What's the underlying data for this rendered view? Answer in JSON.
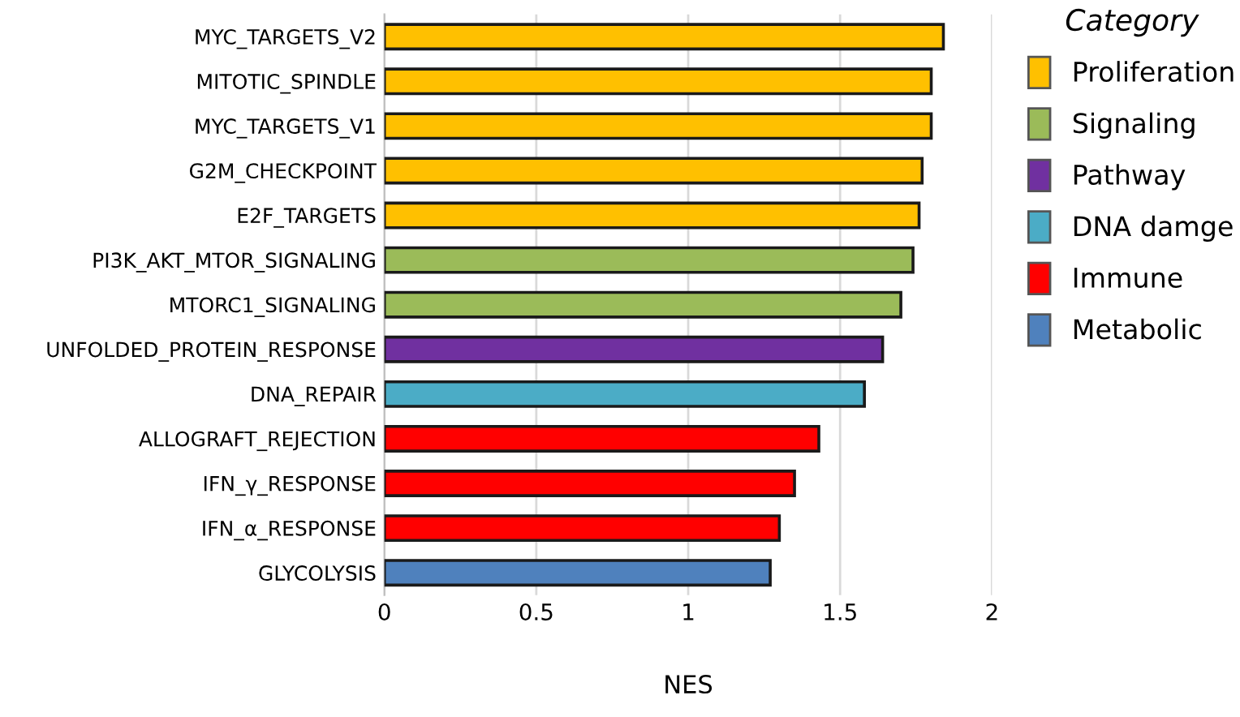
{
  "chart_data": {
    "type": "bar",
    "orientation": "horizontal",
    "xlabel": "NES",
    "legend_title": "Category",
    "categories": [
      "MYC_TARGETS_V2",
      "MITOTIC_SPINDLE",
      "MYC_TARGETS_V1",
      "G2M_CHECKPOINT",
      "E2F_TARGETS",
      "PI3K_AKT_MTOR_SIGNALING",
      "MTORC1_SIGNALING",
      "UNFOLDED_PROTEIN_RESPONSE",
      "DNA_REPAIR",
      "ALLOGRAFT_REJECTION",
      "IFN_γ_RESPONSE",
      "IFN_α_RESPONSE",
      "GLYCOLYSIS"
    ],
    "series": [
      {
        "name": "Proliferation",
        "color": "#ffc000",
        "values": [
          1.84,
          1.8,
          1.8,
          1.77,
          1.76,
          null,
          null,
          null,
          null,
          null,
          null,
          null,
          null
        ]
      },
      {
        "name": "Signaling",
        "color": "#9bbb59",
        "values": [
          null,
          null,
          null,
          null,
          null,
          1.74,
          1.7,
          null,
          null,
          null,
          null,
          null,
          null
        ]
      },
      {
        "name": "Pathway",
        "color": "#7030a0",
        "values": [
          null,
          null,
          null,
          null,
          null,
          null,
          null,
          1.64,
          null,
          null,
          null,
          null,
          null
        ]
      },
      {
        "name": "DNA damge",
        "color": "#4bacc6",
        "values": [
          null,
          null,
          null,
          null,
          null,
          null,
          null,
          null,
          1.58,
          null,
          null,
          null,
          null
        ]
      },
      {
        "name": "Immune",
        "color": "#ff0000",
        "values": [
          null,
          null,
          null,
          null,
          null,
          null,
          null,
          null,
          null,
          1.43,
          1.35,
          1.3,
          null
        ]
      },
      {
        "name": "Metabolic",
        "color": "#4f81bd",
        "values": [
          null,
          null,
          null,
          null,
          null,
          null,
          null,
          null,
          null,
          null,
          null,
          null,
          1.27
        ]
      }
    ],
    "xlim": [
      0,
      2
    ],
    "xticks": [
      0,
      0.5,
      1,
      1.5,
      2
    ],
    "grid": "x",
    "legend": "right"
  }
}
